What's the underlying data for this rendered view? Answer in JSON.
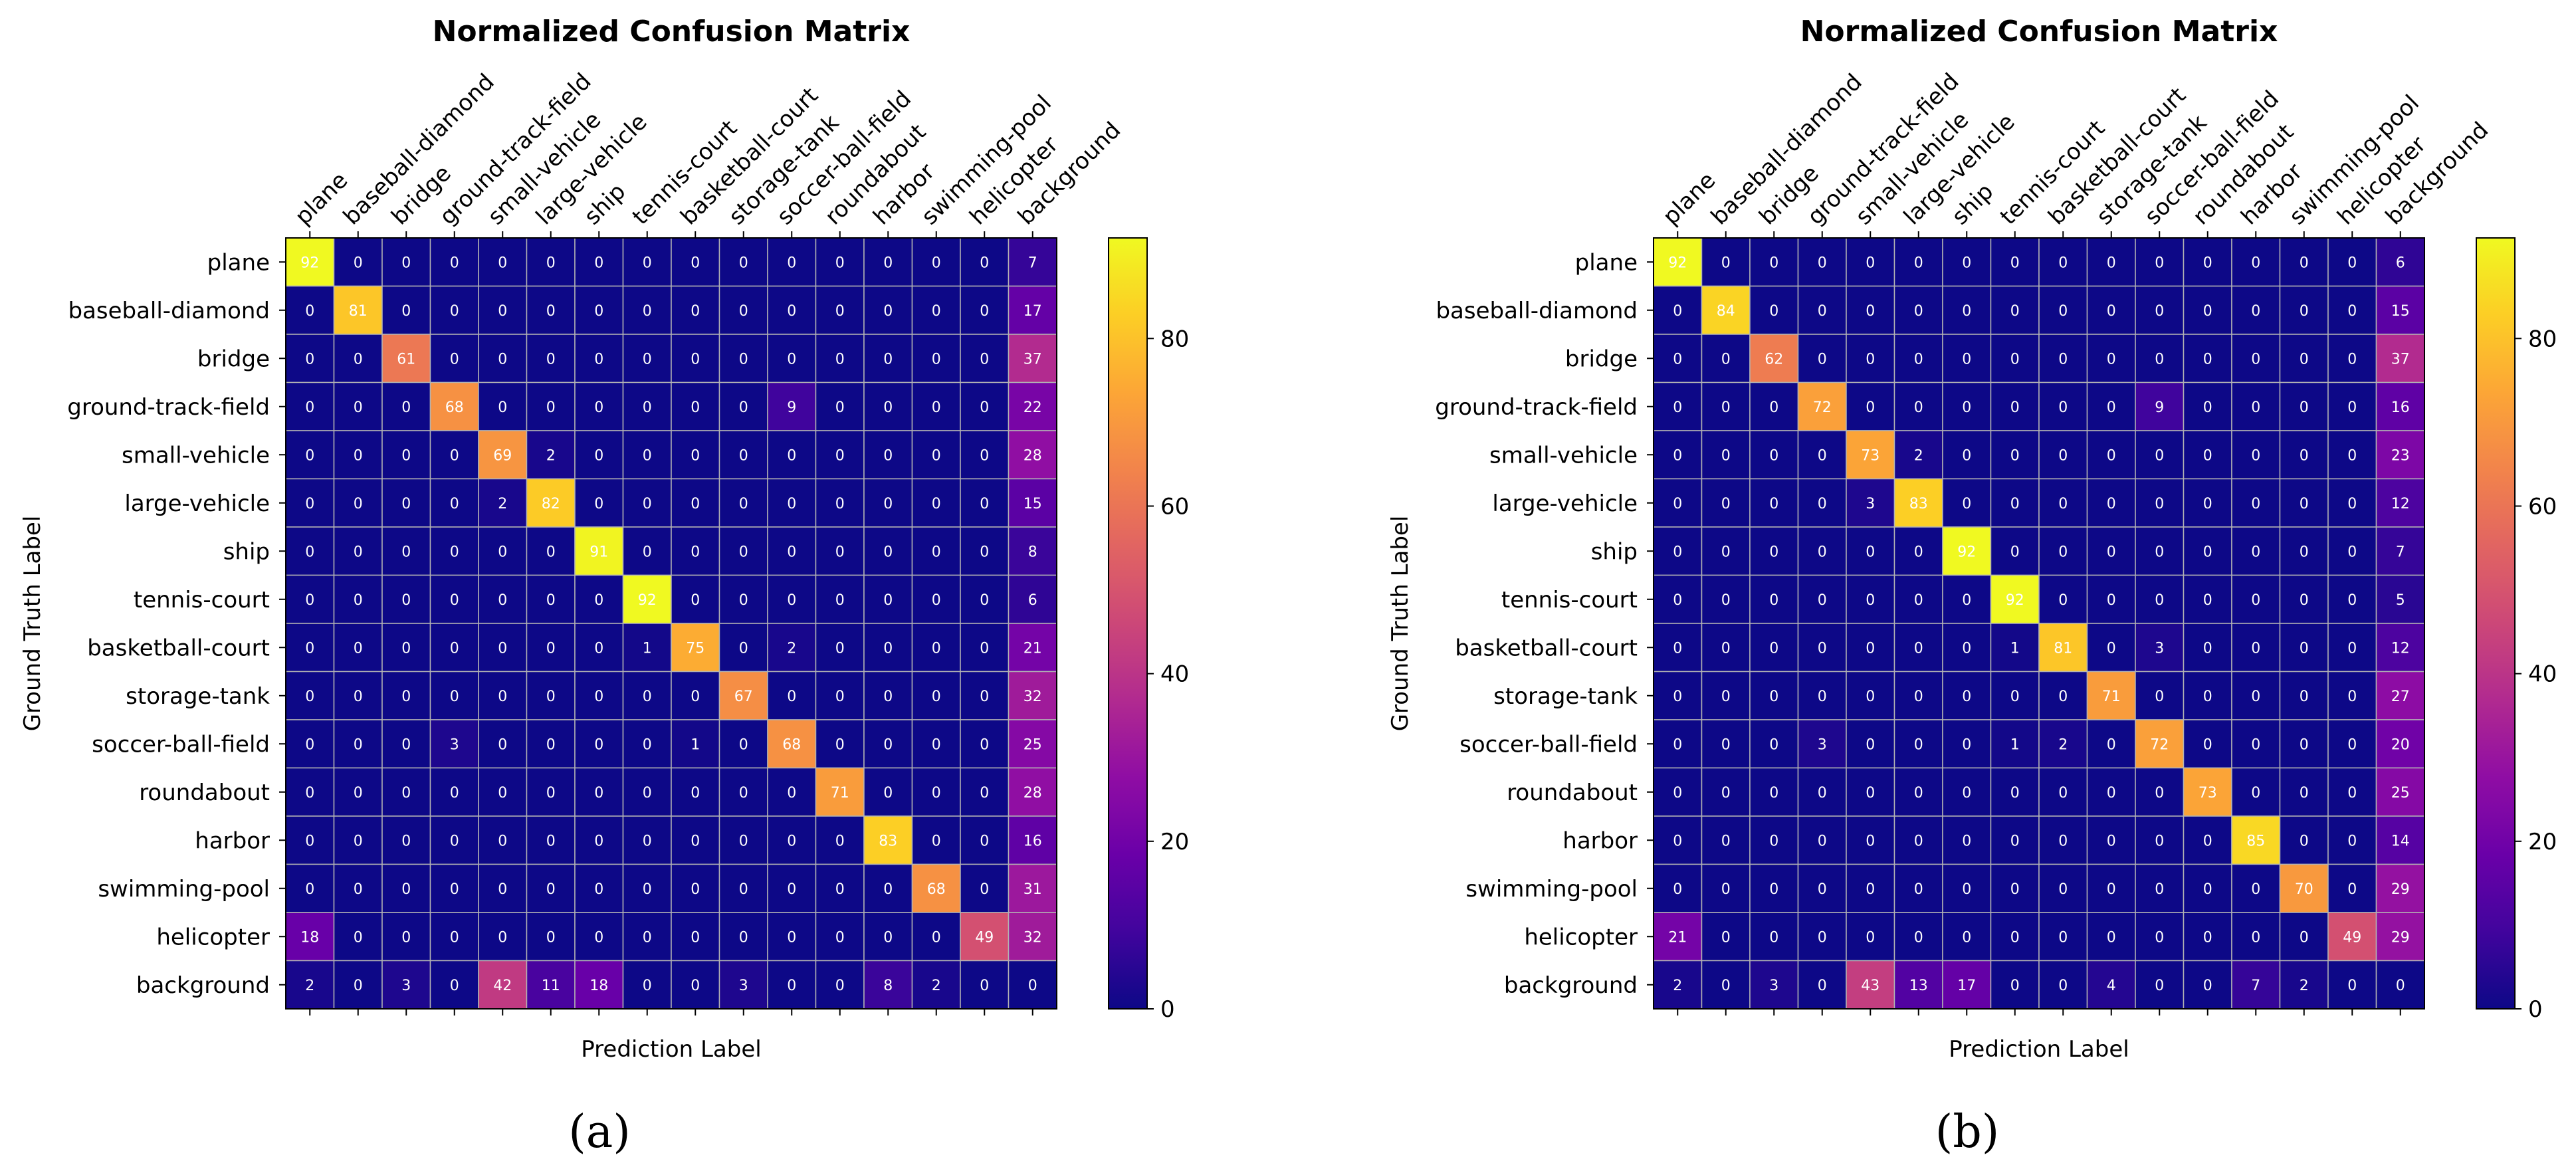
{
  "chart_data": [
    {
      "type": "heatmap",
      "panel_label": "(a)",
      "title": "Normalized Confusion Matrix",
      "xlabel": "Prediction Label",
      "ylabel": "Ground Truth Label",
      "categories": [
        "plane",
        "baseball-diamond",
        "bridge",
        "ground-track-field",
        "small-vehicle",
        "large-vehicle",
        "ship",
        "tennis-court",
        "basketball-court",
        "storage-tank",
        "soccer-ball-field",
        "roundabout",
        "harbor",
        "swimming-pool",
        "helicopter",
        "background"
      ],
      "colorbar": {
        "min": 0,
        "max": 92,
        "ticks": [
          0,
          20,
          40,
          60,
          80
        ],
        "colormap": "plasma"
      },
      "values": [
        [
          92,
          0,
          0,
          0,
          0,
          0,
          0,
          0,
          0,
          0,
          0,
          0,
          0,
          0,
          0,
          7
        ],
        [
          0,
          81,
          0,
          0,
          0,
          0,
          0,
          0,
          0,
          0,
          0,
          0,
          0,
          0,
          0,
          17
        ],
        [
          0,
          0,
          61,
          0,
          0,
          0,
          0,
          0,
          0,
          0,
          0,
          0,
          0,
          0,
          0,
          37
        ],
        [
          0,
          0,
          0,
          68,
          0,
          0,
          0,
          0,
          0,
          0,
          9,
          0,
          0,
          0,
          0,
          22
        ],
        [
          0,
          0,
          0,
          0,
          69,
          2,
          0,
          0,
          0,
          0,
          0,
          0,
          0,
          0,
          0,
          28
        ],
        [
          0,
          0,
          0,
          0,
          2,
          82,
          0,
          0,
          0,
          0,
          0,
          0,
          0,
          0,
          0,
          15
        ],
        [
          0,
          0,
          0,
          0,
          0,
          0,
          91,
          0,
          0,
          0,
          0,
          0,
          0,
          0,
          0,
          8
        ],
        [
          0,
          0,
          0,
          0,
          0,
          0,
          0,
          92,
          0,
          0,
          0,
          0,
          0,
          0,
          0,
          6
        ],
        [
          0,
          0,
          0,
          0,
          0,
          0,
          0,
          1,
          75,
          0,
          2,
          0,
          0,
          0,
          0,
          21
        ],
        [
          0,
          0,
          0,
          0,
          0,
          0,
          0,
          0,
          0,
          67,
          0,
          0,
          0,
          0,
          0,
          32
        ],
        [
          0,
          0,
          0,
          3,
          0,
          0,
          0,
          0,
          1,
          0,
          68,
          0,
          0,
          0,
          0,
          25
        ],
        [
          0,
          0,
          0,
          0,
          0,
          0,
          0,
          0,
          0,
          0,
          0,
          71,
          0,
          0,
          0,
          28
        ],
        [
          0,
          0,
          0,
          0,
          0,
          0,
          0,
          0,
          0,
          0,
          0,
          0,
          83,
          0,
          0,
          16
        ],
        [
          0,
          0,
          0,
          0,
          0,
          0,
          0,
          0,
          0,
          0,
          0,
          0,
          0,
          68,
          0,
          31
        ],
        [
          18,
          0,
          0,
          0,
          0,
          0,
          0,
          0,
          0,
          0,
          0,
          0,
          0,
          0,
          49,
          32
        ],
        [
          2,
          0,
          3,
          0,
          42,
          11,
          18,
          0,
          0,
          3,
          0,
          0,
          8,
          2,
          0,
          0
        ]
      ]
    },
    {
      "type": "heatmap",
      "panel_label": "(b)",
      "title": "Normalized Confusion Matrix",
      "xlabel": "Prediction Label",
      "ylabel": "Ground Truth Label",
      "categories": [
        "plane",
        "baseball-diamond",
        "bridge",
        "ground-track-field",
        "small-vehicle",
        "large-vehicle",
        "ship",
        "tennis-court",
        "basketball-court",
        "storage-tank",
        "soccer-ball-field",
        "roundabout",
        "harbor",
        "swimming-pool",
        "helicopter",
        "background"
      ],
      "colorbar": {
        "min": 0,
        "max": 92,
        "ticks": [
          0,
          20,
          40,
          60,
          80
        ],
        "colormap": "plasma"
      },
      "values": [
        [
          92,
          0,
          0,
          0,
          0,
          0,
          0,
          0,
          0,
          0,
          0,
          0,
          0,
          0,
          0,
          6
        ],
        [
          0,
          84,
          0,
          0,
          0,
          0,
          0,
          0,
          0,
          0,
          0,
          0,
          0,
          0,
          0,
          15
        ],
        [
          0,
          0,
          62,
          0,
          0,
          0,
          0,
          0,
          0,
          0,
          0,
          0,
          0,
          0,
          0,
          37
        ],
        [
          0,
          0,
          0,
          72,
          0,
          0,
          0,
          0,
          0,
          0,
          9,
          0,
          0,
          0,
          0,
          16
        ],
        [
          0,
          0,
          0,
          0,
          73,
          2,
          0,
          0,
          0,
          0,
          0,
          0,
          0,
          0,
          0,
          23
        ],
        [
          0,
          0,
          0,
          0,
          3,
          83,
          0,
          0,
          0,
          0,
          0,
          0,
          0,
          0,
          0,
          12
        ],
        [
          0,
          0,
          0,
          0,
          0,
          0,
          92,
          0,
          0,
          0,
          0,
          0,
          0,
          0,
          0,
          7
        ],
        [
          0,
          0,
          0,
          0,
          0,
          0,
          0,
          92,
          0,
          0,
          0,
          0,
          0,
          0,
          0,
          5
        ],
        [
          0,
          0,
          0,
          0,
          0,
          0,
          0,
          1,
          81,
          0,
          3,
          0,
          0,
          0,
          0,
          12
        ],
        [
          0,
          0,
          0,
          0,
          0,
          0,
          0,
          0,
          0,
          71,
          0,
          0,
          0,
          0,
          0,
          27
        ],
        [
          0,
          0,
          0,
          3,
          0,
          0,
          0,
          1,
          2,
          0,
          72,
          0,
          0,
          0,
          0,
          20
        ],
        [
          0,
          0,
          0,
          0,
          0,
          0,
          0,
          0,
          0,
          0,
          0,
          73,
          0,
          0,
          0,
          25
        ],
        [
          0,
          0,
          0,
          0,
          0,
          0,
          0,
          0,
          0,
          0,
          0,
          0,
          85,
          0,
          0,
          14
        ],
        [
          0,
          0,
          0,
          0,
          0,
          0,
          0,
          0,
          0,
          0,
          0,
          0,
          0,
          70,
          0,
          29
        ],
        [
          21,
          0,
          0,
          0,
          0,
          0,
          0,
          0,
          0,
          0,
          0,
          0,
          0,
          0,
          49,
          29
        ],
        [
          2,
          0,
          3,
          0,
          43,
          13,
          17,
          0,
          0,
          4,
          0,
          0,
          7,
          2,
          0,
          0
        ]
      ]
    }
  ]
}
